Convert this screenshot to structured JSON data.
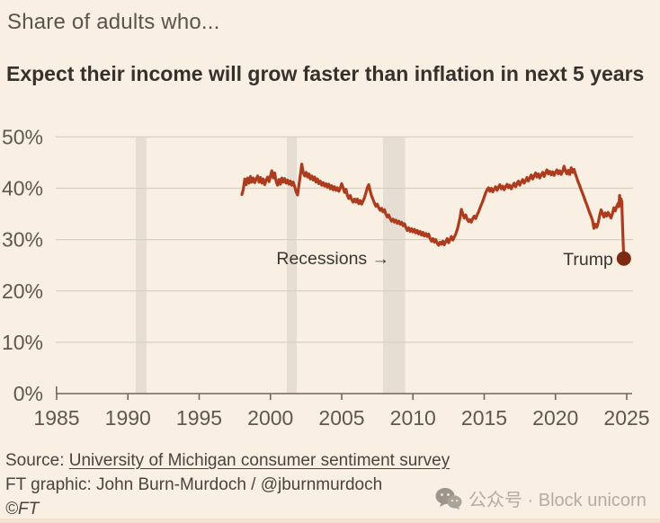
{
  "header": {
    "kicker": "Share of adults who...",
    "title": "Expect their income will grow faster than inflation in next 5 years"
  },
  "footer": {
    "source_prefix": "Source: ",
    "source_link": "University of Michigan consumer sentiment survey",
    "credit": "FT graphic: John Burn-Murdoch / @jburnmurdoch",
    "copyright": "©FT"
  },
  "watermark": {
    "icon": "wechat-icon",
    "text": "公众号 · Block unicorn"
  },
  "colors": {
    "background": "#f9efe2",
    "line": "#ad3c1f",
    "dot": "#7d2a12",
    "recession_band": "#e6ded2",
    "gridline": "#d8d0c3",
    "axis": "#6f675d",
    "axis_text": "#5f584f",
    "annotation_text": "#3a3631"
  },
  "chart_data": {
    "type": "line",
    "unit": "%",
    "xlabel": "",
    "ylabel": "",
    "x_ticks": [
      1985,
      1990,
      1995,
      2000,
      2005,
      2010,
      2015,
      2020,
      2025
    ],
    "y_ticks": [
      0,
      10,
      20,
      30,
      40,
      50
    ],
    "y_tick_labels": [
      "0%",
      "10%",
      "20%",
      "30%",
      "40%",
      "50%"
    ],
    "xlim": [
      1985,
      2025.4
    ],
    "ylim": [
      0,
      50
    ],
    "grid": true,
    "recessions": [
      [
        1990.55,
        1991.3
      ],
      [
        2001.15,
        2001.85
      ],
      [
        2007.9,
        2009.45
      ]
    ],
    "annotations": [
      {
        "text": "Recessions →",
        "year": 2008.35,
        "pct": 26.4,
        "anchor": "end"
      },
      {
        "text": "Trump",
        "attach_to": "last-point",
        "anchor": "end"
      }
    ],
    "series": [
      {
        "name": "Expect income to grow faster than inflation in next 5 years",
        "end_label": "Trump",
        "end_value": 26.3,
        "points": [
          [
            1998.0,
            38.8
          ],
          [
            1998.1,
            39.8
          ],
          [
            1998.2,
            41.8
          ],
          [
            1998.3,
            40.7
          ],
          [
            1998.4,
            42.0
          ],
          [
            1998.5,
            41.0
          ],
          [
            1998.6,
            42.3
          ],
          [
            1998.7,
            41.2
          ],
          [
            1998.8,
            42.0
          ],
          [
            1998.9,
            41.1
          ],
          [
            1999.0,
            41.8
          ],
          [
            1999.1,
            42.4
          ],
          [
            1999.2,
            41.2
          ],
          [
            1999.3,
            42.1
          ],
          [
            1999.4,
            41.0
          ],
          [
            1999.5,
            41.8
          ],
          [
            1999.6,
            40.7
          ],
          [
            1999.7,
            41.6
          ],
          [
            1999.8,
            42.2
          ],
          [
            1999.9,
            41.3
          ],
          [
            2000.0,
            42.4
          ],
          [
            2000.1,
            43.4
          ],
          [
            2000.2,
            42.0
          ],
          [
            2000.3,
            43.0
          ],
          [
            2000.4,
            41.3
          ],
          [
            2000.5,
            40.6
          ],
          [
            2000.6,
            41.7
          ],
          [
            2000.7,
            40.8
          ],
          [
            2000.8,
            42.0
          ],
          [
            2000.9,
            41.2
          ],
          [
            2001.0,
            41.9
          ],
          [
            2001.1,
            41.0
          ],
          [
            2001.2,
            41.6
          ],
          [
            2001.3,
            40.8
          ],
          [
            2001.4,
            41.4
          ],
          [
            2001.5,
            40.6
          ],
          [
            2001.6,
            41.2
          ],
          [
            2001.7,
            40.3
          ],
          [
            2001.8,
            39.3
          ],
          [
            2001.9,
            38.7
          ],
          [
            2002.0,
            40.6
          ],
          [
            2002.1,
            42.5
          ],
          [
            2002.2,
            44.7
          ],
          [
            2002.3,
            43.1
          ],
          [
            2002.4,
            42.4
          ],
          [
            2002.5,
            43.1
          ],
          [
            2002.6,
            42.2
          ],
          [
            2002.7,
            42.8
          ],
          [
            2002.8,
            41.8
          ],
          [
            2002.9,
            42.4
          ],
          [
            2003.0,
            41.6
          ],
          [
            2003.1,
            42.2
          ],
          [
            2003.2,
            41.2
          ],
          [
            2003.3,
            41.8
          ],
          [
            2003.4,
            40.9
          ],
          [
            2003.5,
            41.4
          ],
          [
            2003.6,
            40.6
          ],
          [
            2003.7,
            41.1
          ],
          [
            2003.8,
            40.4
          ],
          [
            2003.9,
            40.9
          ],
          [
            2004.0,
            40.2
          ],
          [
            2004.1,
            40.8
          ],
          [
            2004.2,
            39.9
          ],
          [
            2004.3,
            40.5
          ],
          [
            2004.4,
            39.7
          ],
          [
            2004.5,
            40.3
          ],
          [
            2004.6,
            39.6
          ],
          [
            2004.7,
            40.1
          ],
          [
            2004.8,
            39.4
          ],
          [
            2004.9,
            40.0
          ],
          [
            2005.0,
            40.9
          ],
          [
            2005.1,
            40.1
          ],
          [
            2005.2,
            39.2
          ],
          [
            2005.3,
            39.8
          ],
          [
            2005.4,
            38.6
          ],
          [
            2005.5,
            38.0
          ],
          [
            2005.6,
            38.6
          ],
          [
            2005.7,
            37.8
          ],
          [
            2005.8,
            37.3
          ],
          [
            2005.9,
            37.9
          ],
          [
            2006.0,
            37.3
          ],
          [
            2006.1,
            37.9
          ],
          [
            2006.2,
            37.0
          ],
          [
            2006.3,
            37.6
          ],
          [
            2006.4,
            36.9
          ],
          [
            2006.5,
            37.5
          ],
          [
            2006.6,
            38.2
          ],
          [
            2006.7,
            39.1
          ],
          [
            2006.8,
            40.1
          ],
          [
            2006.9,
            40.7
          ],
          [
            2007.0,
            39.5
          ],
          [
            2007.1,
            38.5
          ],
          [
            2007.2,
            37.8
          ],
          [
            2007.3,
            37.1
          ],
          [
            2007.4,
            36.5
          ],
          [
            2007.5,
            36.9
          ],
          [
            2007.6,
            36.2
          ],
          [
            2007.7,
            35.7
          ],
          [
            2007.8,
            36.1
          ],
          [
            2007.9,
            35.4
          ],
          [
            2008.0,
            35.8
          ],
          [
            2008.1,
            35.0
          ],
          [
            2008.2,
            34.4
          ],
          [
            2008.3,
            34.8
          ],
          [
            2008.4,
            34.1
          ],
          [
            2008.5,
            33.6
          ],
          [
            2008.6,
            34.0
          ],
          [
            2008.7,
            33.4
          ],
          [
            2008.8,
            33.8
          ],
          [
            2008.9,
            33.2
          ],
          [
            2009.0,
            33.6
          ],
          [
            2009.1,
            33.0
          ],
          [
            2009.2,
            33.4
          ],
          [
            2009.3,
            32.7
          ],
          [
            2009.4,
            33.1
          ],
          [
            2009.5,
            32.4
          ],
          [
            2009.6,
            31.8
          ],
          [
            2009.7,
            32.3
          ],
          [
            2009.8,
            31.6
          ],
          [
            2009.9,
            32.1
          ],
          [
            2010.0,
            31.5
          ],
          [
            2010.1,
            32.0
          ],
          [
            2010.2,
            31.3
          ],
          [
            2010.3,
            31.8
          ],
          [
            2010.4,
            31.1
          ],
          [
            2010.5,
            31.6
          ],
          [
            2010.6,
            30.9
          ],
          [
            2010.7,
            31.4
          ],
          [
            2010.8,
            30.7
          ],
          [
            2010.9,
            31.2
          ],
          [
            2011.0,
            30.6
          ],
          [
            2011.1,
            31.1
          ],
          [
            2011.2,
            30.2
          ],
          [
            2011.3,
            29.7
          ],
          [
            2011.4,
            30.2
          ],
          [
            2011.5,
            29.5
          ],
          [
            2011.6,
            30.0
          ],
          [
            2011.7,
            29.3
          ],
          [
            2011.8,
            28.9
          ],
          [
            2011.9,
            29.5
          ],
          [
            2012.0,
            29.1
          ],
          [
            2012.1,
            29.7
          ],
          [
            2012.2,
            29.0
          ],
          [
            2012.3,
            29.6
          ],
          [
            2012.4,
            30.2
          ],
          [
            2012.5,
            29.4
          ],
          [
            2012.6,
            30.0
          ],
          [
            2012.7,
            30.6
          ],
          [
            2012.8,
            29.9
          ],
          [
            2012.9,
            30.5
          ],
          [
            2013.0,
            31.1
          ],
          [
            2013.1,
            31.9
          ],
          [
            2013.2,
            33.0
          ],
          [
            2013.3,
            34.3
          ],
          [
            2013.4,
            35.9
          ],
          [
            2013.5,
            35.0
          ],
          [
            2013.6,
            34.2
          ],
          [
            2013.7,
            34.8
          ],
          [
            2013.8,
            34.0
          ],
          [
            2013.9,
            33.5
          ],
          [
            2014.0,
            33.9
          ],
          [
            2014.1,
            33.4
          ],
          [
            2014.2,
            34.1
          ],
          [
            2014.3,
            34.6
          ],
          [
            2014.4,
            34.1
          ],
          [
            2014.5,
            34.8
          ],
          [
            2014.6,
            35.4
          ],
          [
            2014.7,
            36.1
          ],
          [
            2014.8,
            36.8
          ],
          [
            2014.9,
            37.5
          ],
          [
            2015.0,
            38.3
          ],
          [
            2015.1,
            39.1
          ],
          [
            2015.2,
            39.7
          ],
          [
            2015.3,
            40.1
          ],
          [
            2015.4,
            39.4
          ],
          [
            2015.5,
            40.0
          ],
          [
            2015.6,
            39.3
          ],
          [
            2015.7,
            39.8
          ],
          [
            2015.8,
            40.3
          ],
          [
            2015.9,
            39.6
          ],
          [
            2016.0,
            40.2
          ],
          [
            2016.1,
            40.7
          ],
          [
            2016.2,
            39.9
          ],
          [
            2016.3,
            40.4
          ],
          [
            2016.4,
            39.7
          ],
          [
            2016.5,
            40.3
          ],
          [
            2016.6,
            40.8
          ],
          [
            2016.7,
            40.1
          ],
          [
            2016.8,
            40.6
          ],
          [
            2016.9,
            39.9
          ],
          [
            2017.0,
            40.5
          ],
          [
            2017.1,
            41.0
          ],
          [
            2017.2,
            40.3
          ],
          [
            2017.3,
            40.9
          ],
          [
            2017.4,
            41.4
          ],
          [
            2017.5,
            40.6
          ],
          [
            2017.6,
            41.2
          ],
          [
            2017.7,
            41.7
          ],
          [
            2017.8,
            41.0
          ],
          [
            2017.9,
            41.5
          ],
          [
            2018.0,
            42.1
          ],
          [
            2018.1,
            41.4
          ],
          [
            2018.2,
            42.0
          ],
          [
            2018.3,
            42.6
          ],
          [
            2018.4,
            41.8
          ],
          [
            2018.5,
            42.4
          ],
          [
            2018.6,
            43.0
          ],
          [
            2018.7,
            42.2
          ],
          [
            2018.8,
            42.8
          ],
          [
            2018.9,
            42.0
          ],
          [
            2019.0,
            42.6
          ],
          [
            2019.1,
            43.1
          ],
          [
            2019.2,
            42.3
          ],
          [
            2019.3,
            43.0
          ],
          [
            2019.4,
            43.6
          ],
          [
            2019.5,
            42.8
          ],
          [
            2019.6,
            43.3
          ],
          [
            2019.7,
            42.6
          ],
          [
            2019.8,
            43.2
          ],
          [
            2019.9,
            42.5
          ],
          [
            2020.0,
            43.1
          ],
          [
            2020.1,
            43.6
          ],
          [
            2020.2,
            42.8
          ],
          [
            2020.3,
            43.4
          ],
          [
            2020.4,
            42.7
          ],
          [
            2020.5,
            43.3
          ],
          [
            2020.6,
            44.3
          ],
          [
            2020.7,
            43.4
          ],
          [
            2020.8,
            42.8
          ],
          [
            2020.9,
            43.5
          ],
          [
            2021.0,
            42.7
          ],
          [
            2021.1,
            44.0
          ],
          [
            2021.2,
            43.1
          ],
          [
            2021.3,
            43.7
          ],
          [
            2021.4,
            42.8
          ],
          [
            2021.5,
            42.0
          ],
          [
            2021.6,
            41.2
          ],
          [
            2021.7,
            40.5
          ],
          [
            2021.8,
            39.7
          ],
          [
            2021.9,
            39.0
          ],
          [
            2022.0,
            38.3
          ],
          [
            2022.1,
            37.5
          ],
          [
            2022.2,
            36.8
          ],
          [
            2022.3,
            36.0
          ],
          [
            2022.4,
            35.2
          ],
          [
            2022.5,
            34.5
          ],
          [
            2022.6,
            33.7
          ],
          [
            2022.7,
            32.2
          ],
          [
            2022.8,
            33.0
          ],
          [
            2022.9,
            32.4
          ],
          [
            2023.0,
            33.3
          ],
          [
            2023.1,
            34.7
          ],
          [
            2023.2,
            35.8
          ],
          [
            2023.3,
            35.1
          ],
          [
            2023.4,
            34.4
          ],
          [
            2023.5,
            35.2
          ],
          [
            2023.6,
            34.6
          ],
          [
            2023.7,
            35.3
          ],
          [
            2023.8,
            34.7
          ],
          [
            2023.9,
            34.2
          ],
          [
            2024.0,
            35.1
          ],
          [
            2024.1,
            36.2
          ],
          [
            2024.2,
            35.6
          ],
          [
            2024.3,
            36.5
          ],
          [
            2024.4,
            37.1
          ],
          [
            2024.45,
            36.4
          ],
          [
            2024.5,
            38.6
          ],
          [
            2024.55,
            37.0
          ],
          [
            2024.6,
            37.9
          ],
          [
            2024.65,
            37.4
          ],
          [
            2024.7,
            33.5
          ],
          [
            2024.75,
            29.5
          ],
          [
            2024.8,
            26.3
          ]
        ]
      }
    ]
  }
}
